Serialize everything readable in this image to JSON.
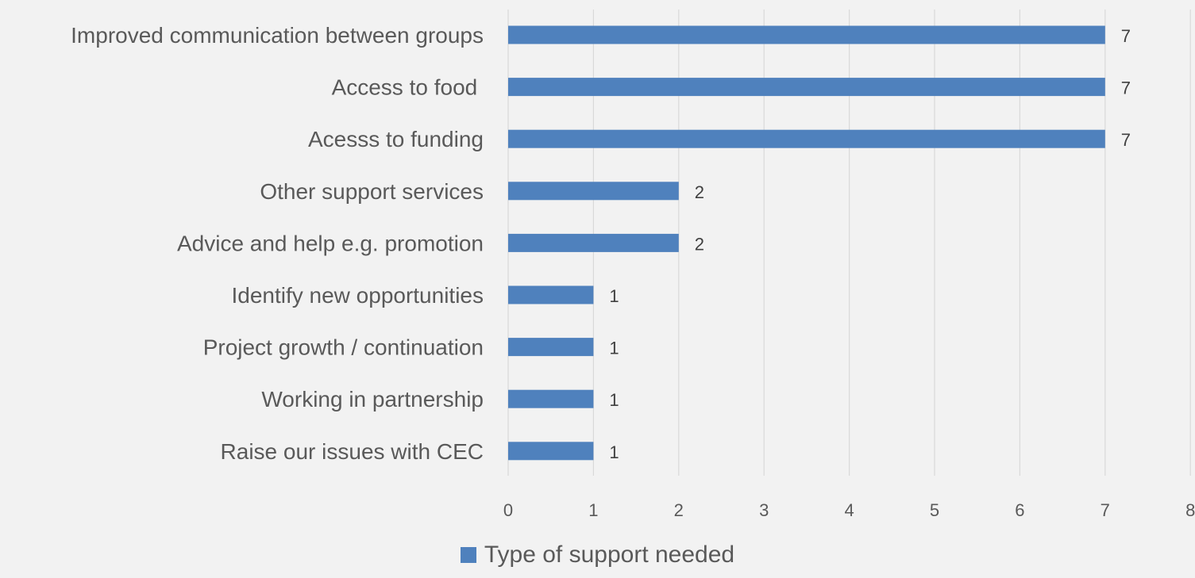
{
  "chart_data": {
    "type": "bar",
    "orientation": "horizontal",
    "categories": [
      "Improved communication between groups",
      "Access to food ",
      "Acesss to funding",
      "Other support services",
      "Advice and help e.g. promotion",
      "Identify new opportunities",
      "Project growth / continuation",
      "Working in partnership",
      "Raise our issues with CEC"
    ],
    "series": [
      {
        "name": "Type of support needed",
        "values": [
          7,
          7,
          7,
          2,
          2,
          1,
          1,
          1,
          1
        ],
        "color": "#4f81bd"
      }
    ],
    "data_labels": [
      "7",
      "7",
      "7",
      "2",
      "2",
      "1",
      "1",
      "1",
      "1"
    ],
    "xlim": [
      0,
      8
    ],
    "x_ticks": [
      "0",
      "1",
      "2",
      "3",
      "4",
      "5",
      "6",
      "7",
      "8"
    ],
    "grid": "vertical",
    "legend_position": "bottom",
    "title": "",
    "xlabel": "",
    "ylabel": ""
  }
}
